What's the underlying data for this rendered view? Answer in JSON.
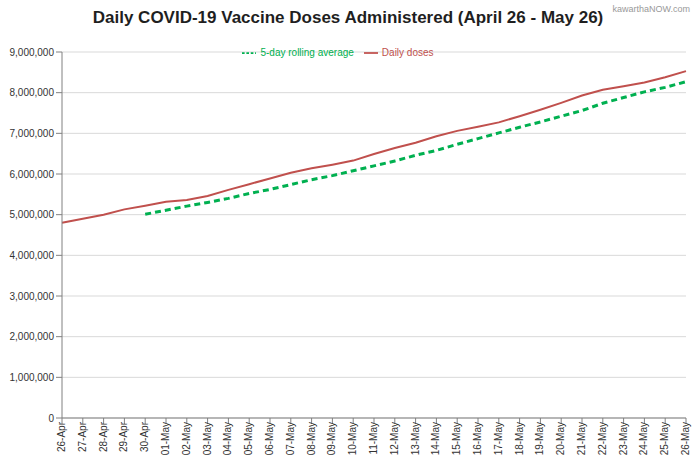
{
  "chart_data": {
    "type": "line",
    "title": "Daily COVID-19 Vaccine Doses Administered (April 26 - May 26)",
    "annotation": "kawarthaNOW.com",
    "categories": [
      "26-Apr",
      "27-Apr",
      "28-Apr",
      "29-Apr",
      "30-Apr",
      "01-May",
      "02-May",
      "03-May",
      "04-May",
      "05-May",
      "06-May",
      "07-May",
      "08-May",
      "09-May",
      "10-May",
      "11-May",
      "12-May",
      "13-May",
      "14-May",
      "15-May",
      "16-May",
      "17-May",
      "18-May",
      "19-May",
      "20-May",
      "21-May",
      "22-May",
      "23-May",
      "24-May",
      "25-May",
      "26-May"
    ],
    "series": [
      {
        "name": "Daily doses",
        "color": "#c0504d",
        "line_style": "solid",
        "marker": "none",
        "values": [
          4800000,
          4900000,
          5000000,
          5130000,
          5220000,
          5320000,
          5360000,
          5460000,
          5610000,
          5750000,
          5890000,
          6030000,
          6140000,
          6230000,
          6330000,
          6490000,
          6640000,
          6770000,
          6930000,
          7060000,
          7160000,
          7270000,
          7420000,
          7580000,
          7750000,
          7930000,
          8070000,
          8160000,
          8250000,
          8380000,
          8530000
        ]
      },
      {
        "name": "5-day rolling average",
        "color": "#00b050",
        "line_style": "dashed",
        "marker": "none",
        "values": [
          null,
          null,
          null,
          null,
          5010000,
          5110000,
          5210000,
          5300000,
          5400000,
          5520000,
          5620000,
          5740000,
          5860000,
          5960000,
          6080000,
          6200000,
          6320000,
          6460000,
          6580000,
          6730000,
          6870000,
          7010000,
          7150000,
          7280000,
          7420000,
          7560000,
          7740000,
          7880000,
          8020000,
          8130000,
          8270000
        ]
      }
    ],
    "ylim": [
      0,
      9000000
    ],
    "yticks": [
      0,
      {
        "value": 1000000,
        "label": "1,000,000"
      },
      {
        "value": 2000000,
        "label": "2,000,000"
      },
      {
        "value": 3000000,
        "label": "3,000,000"
      },
      {
        "value": 4000000,
        "label": "4,000,000"
      },
      {
        "value": 5000000,
        "label": "5,000,000"
      },
      {
        "value": 6000000,
        "label": "6,000,000"
      },
      {
        "value": 7000000,
        "label": "7,000,000"
      },
      {
        "value": 8000000,
        "label": "8,000,000"
      },
      {
        "value": 9000000,
        "label": "9,000,000"
      }
    ],
    "grid": true,
    "legend": "top"
  }
}
